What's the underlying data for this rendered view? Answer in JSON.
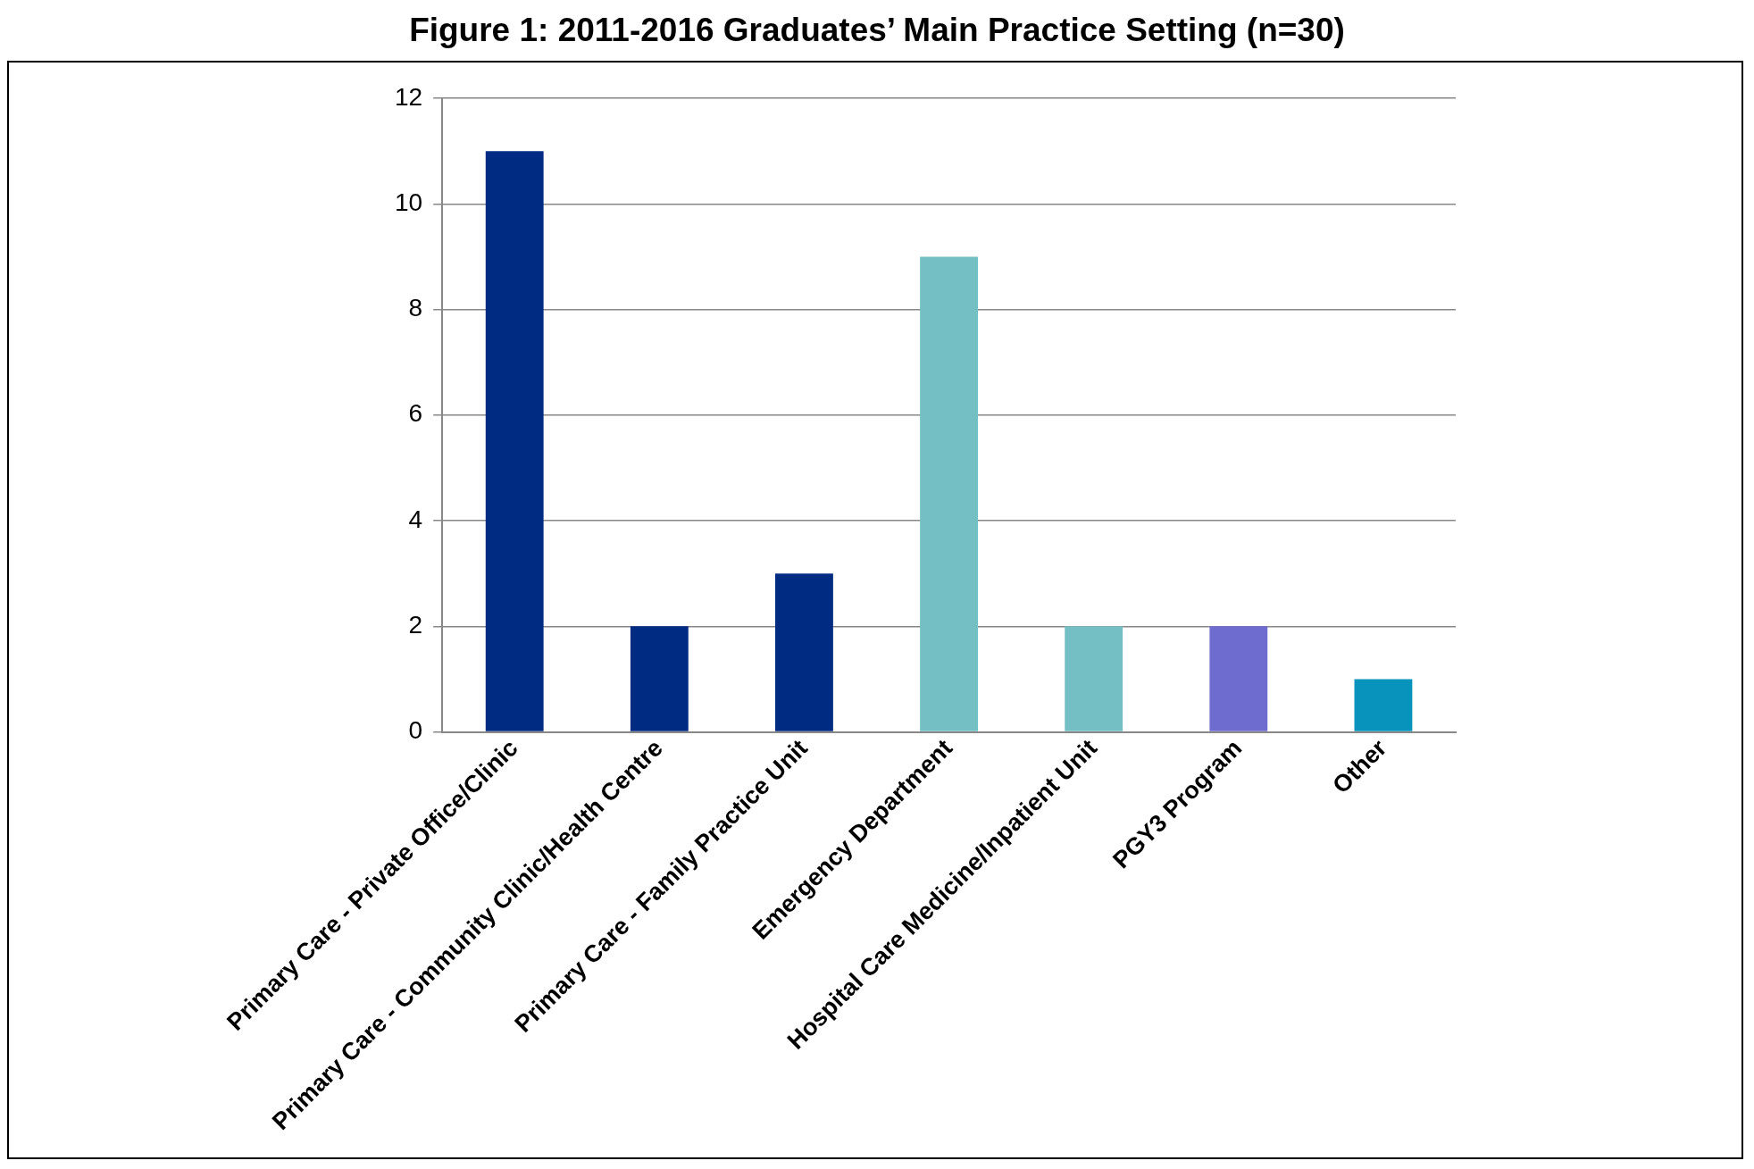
{
  "chart_data": {
    "type": "bar",
    "title": "Figure 1: 2011-2016 Graduates’ Main Practice Setting (n=30)",
    "categories": [
      "Primary Care - Private Office/Clinic",
      "Primary Care - Community Clinic/Health Centre",
      "Primary Care - Family Practice Unit",
      "Emergency Department",
      "Hospital Care Medicine/Inpatient Unit",
      "PGY3 Program",
      "Other"
    ],
    "values": [
      11,
      2,
      3,
      9,
      2,
      2,
      1
    ],
    "colors": [
      "#002b82",
      "#002b82",
      "#002b82",
      "#74bfc4",
      "#74bfc4",
      "#6f6ccf",
      "#0793bb"
    ],
    "ylim": [
      0,
      12
    ],
    "yticks": [
      0,
      2,
      4,
      6,
      8,
      10,
      12
    ],
    "grid": "y",
    "legend": false
  }
}
